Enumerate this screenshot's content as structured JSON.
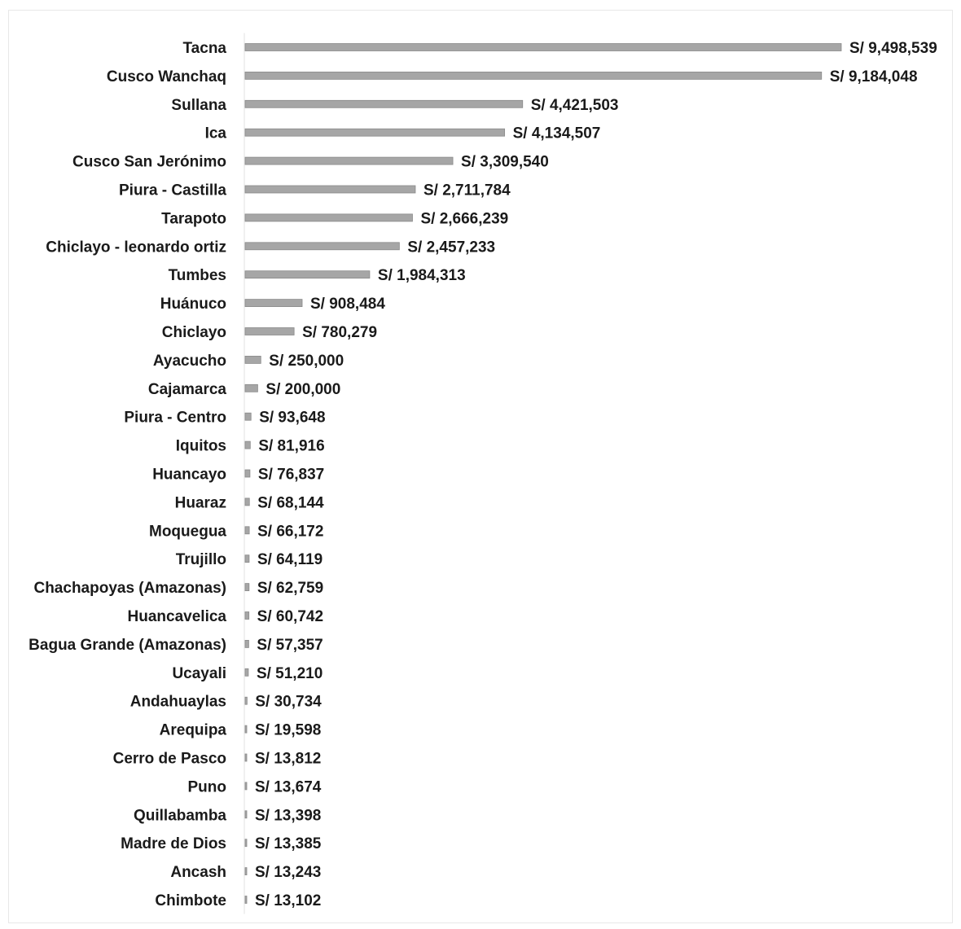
{
  "chart_data": {
    "type": "bar",
    "orientation": "horizontal",
    "title": "",
    "xlabel": "",
    "ylabel": "",
    "value_prefix": "S/ ",
    "grid": false,
    "legend": "none",
    "bar_color": "#a6a6a6",
    "bar_edge_color": "#8a8a8a",
    "xlim": [
      0,
      9498539
    ],
    "categories": [
      "Tacna",
      "Cusco Wanchaq",
      "Sullana",
      "Ica",
      "Cusco San Jerónimo",
      "Piura - Castilla",
      "Tarapoto",
      "Chiclayo - leonardo ortiz",
      "Tumbes",
      "Huánuco",
      "Chiclayo",
      "Ayacucho",
      "Cajamarca",
      "Piura - Centro",
      "Iquitos",
      "Huancayo",
      "Huaraz",
      "Moquegua",
      "Trujillo",
      "Chachapoyas (Amazonas)",
      "Huancavelica",
      "Bagua Grande (Amazonas)",
      "Ucayali",
      "Andahuaylas",
      "Arequipa",
      "Cerro de Pasco",
      "Puno",
      "Quillabamba",
      "Madre de Dios",
      "Ancash",
      "Chimbote"
    ],
    "values": [
      9498539,
      9184048,
      4421503,
      4134507,
      3309540,
      2711784,
      2666239,
      2457233,
      1984313,
      908484,
      780279,
      250000,
      200000,
      93648,
      81916,
      76837,
      68144,
      66172,
      64119,
      62759,
      60742,
      57357,
      51210,
      30734,
      19598,
      13812,
      13674,
      13398,
      13385,
      13243,
      13102
    ],
    "value_labels": [
      "S/ 9,498,539",
      "S/ 9,184,048",
      "S/ 4,421,503",
      "S/ 4,134,507",
      "S/ 3,309,540",
      "S/ 2,711,784",
      "S/ 2,666,239",
      "S/ 2,457,233",
      "S/ 1,984,313",
      "S/ 908,484",
      "S/ 780,279",
      "S/ 250,000",
      "S/ 200,000",
      "S/ 93,648",
      "S/ 81,916",
      "S/ 76,837",
      "S/ 68,144",
      "S/ 66,172",
      "S/ 64,119",
      "S/ 62,759",
      "S/ 60,742",
      "S/ 57,357",
      "S/ 51,210",
      "S/ 30,734",
      "S/ 19,598",
      "S/ 13,812",
      "S/ 13,674",
      "S/ 13,398",
      "S/ 13,385",
      "S/ 13,243",
      "S/ 13,102"
    ]
  }
}
